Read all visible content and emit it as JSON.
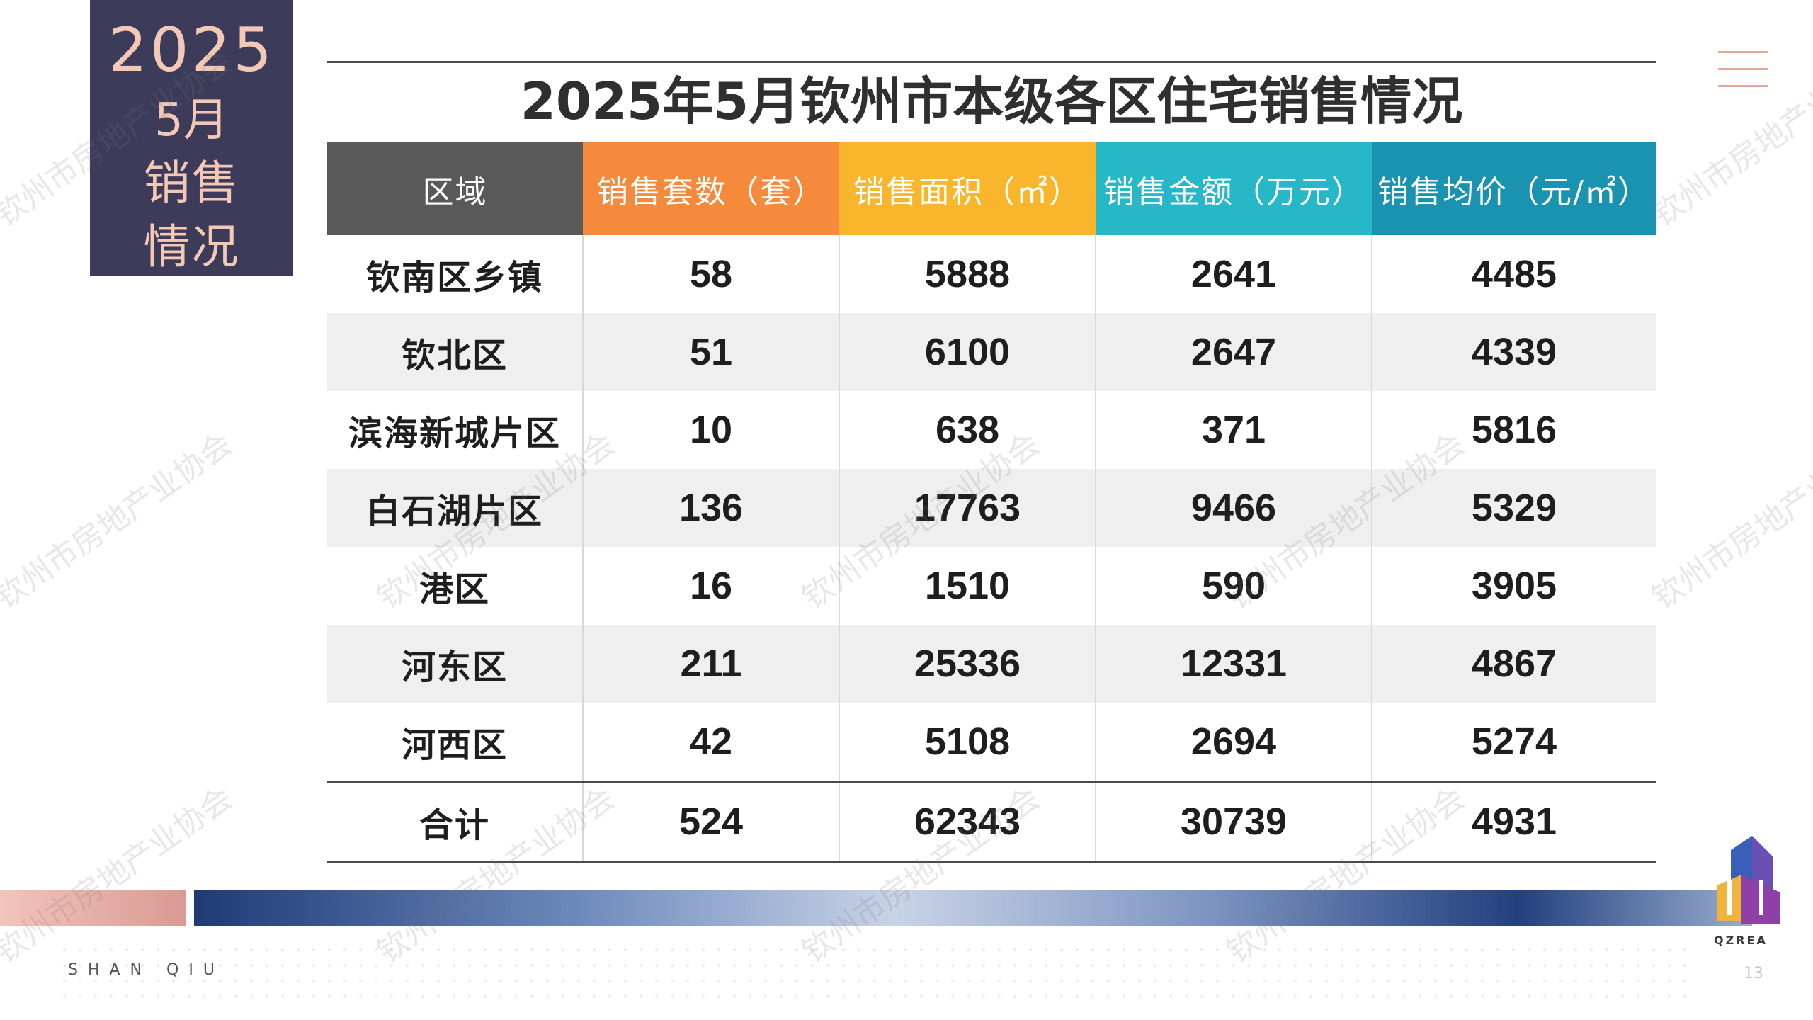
{
  "badge": {
    "year": "2025",
    "month": "5月",
    "line1": "销售",
    "line2": "情况"
  },
  "title": "2025年5月钦州市本级各区住宅销售情况",
  "table": {
    "headers": [
      {
        "label": "区域",
        "color": "#595959"
      },
      {
        "label": "销售套数（套）",
        "color": "#f58a3c"
      },
      {
        "label": "销售面积（㎡）",
        "color": "#f9b52b"
      },
      {
        "label": "销售金额（万元）",
        "color": "#27b8c8"
      },
      {
        "label": "销售均价（元/㎡）",
        "color": "#1a93b1"
      }
    ],
    "rows": [
      [
        "钦南区乡镇",
        "58",
        "5888",
        "2641",
        "4485"
      ],
      [
        "钦北区",
        "51",
        "6100",
        "2647",
        "4339"
      ],
      [
        "滨海新城片区",
        "10",
        "638",
        "371",
        "5816"
      ],
      [
        "白石湖片区",
        "136",
        "17763",
        "9466",
        "5329"
      ],
      [
        "港区",
        "16",
        "1510",
        "590",
        "3905"
      ],
      [
        "河东区",
        "211",
        "25336",
        "12331",
        "4867"
      ],
      [
        "河西区",
        "42",
        "5108",
        "2694",
        "5274"
      ]
    ],
    "total": [
      "合计",
      "524",
      "62343",
      "30739",
      "4931"
    ]
  },
  "footer": {
    "brand": "SHAN QIU",
    "logo_text": "QZREA",
    "page": "13"
  },
  "watermark": "钦州市房地产业协会"
}
